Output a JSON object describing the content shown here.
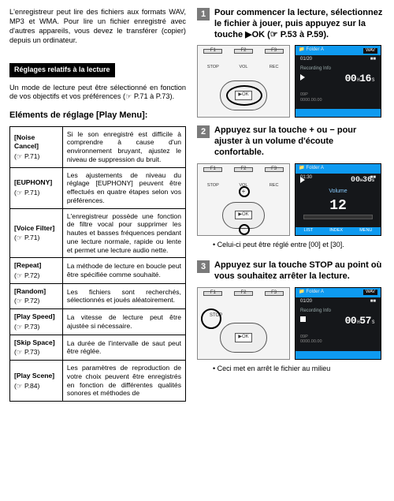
{
  "left": {
    "intro": "L'enregistreur peut lire des fichiers aux formats WAV, MP3 et WMA. Pour lire un fichier enregistré avec d'autres appareils, vous devez le transférer (copier) depuis un ordinateur.",
    "bandeau": "Réglages relatifs à la lecture",
    "mode_para": "Un mode de lecture peut être sélectionné en fonction de vos objectifs et vos préférences (☞ P.71 à P.73).",
    "heading": "Eléments de réglage [Play Menu]:",
    "rows": [
      {
        "label": "[Noise Cancel]",
        "ref": "(☞ P.71)",
        "desc": "Si le son enregistré est difficile à comprendre à cause d'un environnement bruyant, ajustez le niveau de suppression du bruit."
      },
      {
        "label": "[EUPHONY]",
        "ref": "(☞ P.71)",
        "desc": "Les ajustements de niveau du réglage [EUPHONY] peuvent être effectués en quatre étapes selon vos préférences."
      },
      {
        "label": "[Voice Filter]",
        "ref": "(☞ P.71)",
        "desc": "L'enregistreur possède une fonction de filtre vocal pour supprimer les hautes et basses fréquences pendant une lecture normale, rapide ou lente et permet une lecture audio nette."
      },
      {
        "label": "[Repeat]",
        "ref": "(☞ P.72)",
        "desc": "La méthode de lecture en boucle peut être spécifiée comme souhaité."
      },
      {
        "label": "[Random]",
        "ref": "(☞ P.72)",
        "desc": "Les fichiers sont recherchés, sélectionnés et joués aléatoirement."
      },
      {
        "label": "[Play Speed]",
        "ref": "(☞ P.73)",
        "desc": "La vitesse de lecture peut être ajustée si nécessaire."
      },
      {
        "label": "[Skip Space]",
        "ref": "(☞ P.73)",
        "desc": "La durée de l'intervalle de saut peut être réglée."
      },
      {
        "label": "[Play Scene]",
        "ref": "(☞ P.84)",
        "desc": "Les paramètres de reproduction de votre choix peuvent être enregistrés en fonction de différentes qualités sonores et méthodes de"
      }
    ]
  },
  "right": {
    "steps": [
      {
        "num": "1",
        "text": "Pour commencer la lecture, sélectionnez le fichier à jouer, puis appuyez sur la touche ▶OK (☞ P.53 à P.59)."
      },
      {
        "num": "2",
        "text": "Appuyez sur la touche + ou − pour ajuster à un volume d'écoute confortable."
      },
      {
        "num": "3",
        "text": "Appuyez sur la touche STOP au point où vous souhaitez arrêter la lecture."
      }
    ],
    "note2": "Celui-ci peut être réglé entre [00] et [30].",
    "note3": "Ceci met en arrêt le fichier au milieu",
    "device": {
      "f1": "F1",
      "f2": "F2",
      "f3": "F3",
      "stop": "STOP",
      "vol": "VOL",
      "rec": "REC",
      "ok": "▶OK",
      "plus": "+",
      "minus": "–"
    },
    "screen_rec": {
      "folder": "Folder A",
      "fmt": "WAV",
      "count": "01/20",
      "title": "Recording Info",
      "time_h": "00",
      "time_m": "16",
      "meta1": "09P",
      "meta2": "0000.00.00"
    },
    "screen_vol": {
      "folder": "Folder A",
      "time_h": "00",
      "time_m": "36",
      "label": "Volume",
      "value": "12",
      "b1": "LIST",
      "b2": "INDEX",
      "b3": "MENU"
    },
    "screen_stop": {
      "folder": "Folder A",
      "fmt": "WAV",
      "count": "01/20",
      "title": "Recording Info",
      "time_h": "00",
      "time_m": "57",
      "meta1": "09P",
      "meta2": "0000.00.00"
    }
  }
}
